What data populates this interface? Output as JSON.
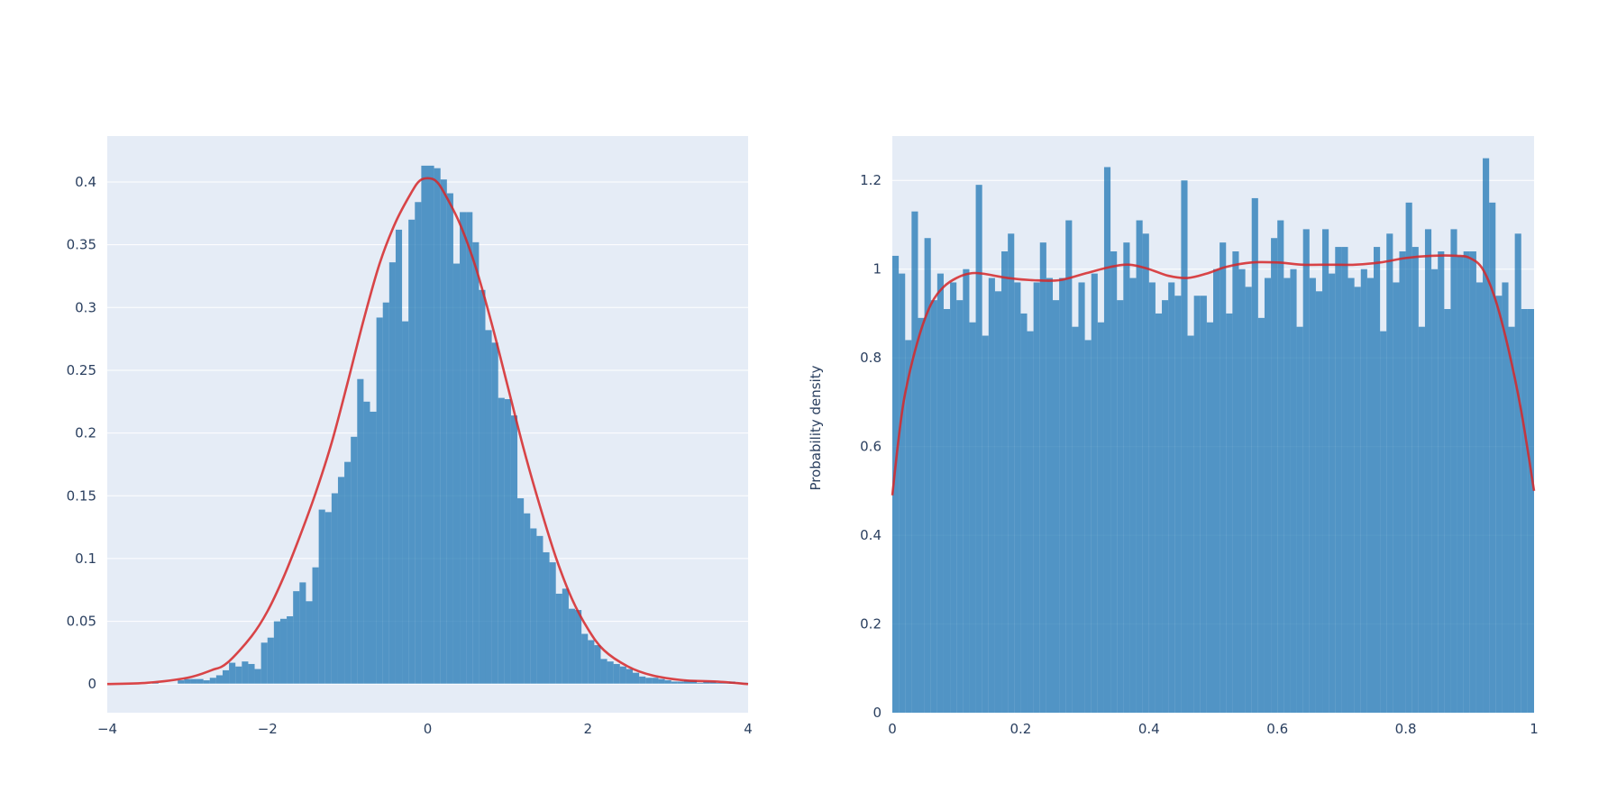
{
  "colors": {
    "bar": "#1f77b4",
    "bar_opacity": 0.75,
    "curve": "#d62728",
    "plot_bg": "#e5ecf6",
    "grid": "#ffffff",
    "text": "#2a3f5f"
  },
  "chart_data": [
    {
      "type": "bar",
      "subtype": "histogram-with-density-curve",
      "xlabel": "",
      "ylabel": "",
      "xlim": [
        -4,
        4
      ],
      "ylim": [
        -0.0228,
        0.4366
      ],
      "x_ticks": [
        -4,
        -2,
        0,
        2,
        4
      ],
      "x_tick_labels": [
        "−4",
        "−2",
        "0",
        "2",
        "4"
      ],
      "y_ticks": [
        0,
        0.05,
        0.1,
        0.15,
        0.2,
        0.25,
        0.3,
        0.35,
        0.4
      ],
      "y_tick_labels": [
        "0",
        "0.05",
        "0.1",
        "0.15",
        "0.2",
        "0.25",
        "0.3",
        "0.35",
        "0.4"
      ],
      "grid": true,
      "bin_start": -4,
      "bin_width": 0.08,
      "values": [
        0,
        0,
        0,
        0,
        0,
        0,
        0,
        0.001,
        0,
        0,
        0,
        0.003,
        0.004,
        0.004,
        0.004,
        0.003,
        0.005,
        0.007,
        0.011,
        0.017,
        0.014,
        0.018,
        0.016,
        0.012,
        0.033,
        0.037,
        0.05,
        0.052,
        0.054,
        0.074,
        0.081,
        0.066,
        0.093,
        0.139,
        0.137,
        0.152,
        0.165,
        0.177,
        0.197,
        0.243,
        0.225,
        0.217,
        0.292,
        0.304,
        0.336,
        0.362,
        0.289,
        0.37,
        0.384,
        0.413,
        0.413,
        0.411,
        0.402,
        0.391,
        0.335,
        0.376,
        0.376,
        0.352,
        0.314,
        0.282,
        0.272,
        0.228,
        0.227,
        0.214,
        0.148,
        0.136,
        0.124,
        0.118,
        0.105,
        0.097,
        0.072,
        0.076,
        0.06,
        0.059,
        0.04,
        0.035,
        0.031,
        0.02,
        0.018,
        0.016,
        0.014,
        0.012,
        0.009,
        0.006,
        0.005,
        0.005,
        0.004,
        0.003,
        0.002,
        0.002,
        0.003,
        0.003,
        0.001,
        0.002,
        0.002,
        0.001,
        0.001,
        0.002,
        0.001,
        0.001
      ],
      "curve": {
        "x": [
          -4.0,
          -3.5,
          -3.0,
          -2.7,
          -2.5,
          -2.2,
          -2.0,
          -1.8,
          -1.6,
          -1.4,
          -1.2,
          -1.0,
          -0.8,
          -0.6,
          -0.4,
          -0.2,
          -0.1,
          0.0,
          0.1,
          0.2,
          0.4,
          0.6,
          0.8,
          1.0,
          1.2,
          1.4,
          1.6,
          1.8,
          2.0,
          2.2,
          2.5,
          2.8,
          3.2,
          3.6,
          4.0
        ],
        "y": [
          0.0,
          0.001,
          0.005,
          0.011,
          0.017,
          0.038,
          0.058,
          0.085,
          0.117,
          0.152,
          0.192,
          0.24,
          0.29,
          0.335,
          0.368,
          0.392,
          0.401,
          0.403,
          0.401,
          0.392,
          0.367,
          0.332,
          0.287,
          0.237,
          0.187,
          0.142,
          0.101,
          0.068,
          0.044,
          0.027,
          0.014,
          0.007,
          0.003,
          0.002,
          0.0
        ]
      }
    },
    {
      "type": "bar",
      "subtype": "histogram-with-density-curve",
      "xlabel": "",
      "ylabel": "Probability density",
      "xlim": [
        0,
        1
      ],
      "ylim": [
        0,
        1.3
      ],
      "x_ticks": [
        0,
        0.2,
        0.4,
        0.6,
        0.8,
        1
      ],
      "x_tick_labels": [
        "0",
        "0.2",
        "0.4",
        "0.6",
        "0.8",
        "1"
      ],
      "y_ticks": [
        0,
        0.2,
        0.4,
        0.6,
        0.8,
        1,
        1.2
      ],
      "y_tick_labels": [
        "0",
        "0.2",
        "0.4",
        "0.6",
        "0.8",
        "1",
        "1.2"
      ],
      "grid": true,
      "bin_start": 0,
      "bin_width": 0.01,
      "values": [
        1.03,
        0.99,
        0.84,
        1.13,
        0.89,
        1.07,
        0.93,
        0.99,
        0.91,
        0.97,
        0.93,
        1.0,
        0.88,
        1.19,
        0.85,
        0.98,
        0.95,
        1.04,
        1.08,
        0.97,
        0.9,
        0.86,
        0.97,
        1.06,
        0.98,
        0.93,
        0.98,
        1.11,
        0.87,
        0.97,
        0.84,
        0.99,
        0.88,
        1.23,
        1.04,
        0.93,
        1.06,
        0.98,
        1.11,
        1.08,
        0.97,
        0.9,
        0.93,
        0.97,
        0.94,
        1.2,
        0.85,
        0.94,
        0.94,
        0.88,
        1.0,
        1.06,
        0.9,
        1.04,
        1.0,
        0.96,
        1.16,
        0.89,
        0.98,
        1.07,
        1.11,
        0.98,
        1.0,
        0.87,
        1.09,
        0.98,
        0.95,
        1.09,
        0.99,
        1.05,
        1.05,
        0.98,
        0.96,
        1.0,
        0.98,
        1.05,
        0.86,
        1.08,
        0.97,
        1.04,
        1.15,
        1.05,
        0.87,
        1.09,
        1.0,
        1.04,
        0.91,
        1.09,
        1.03,
        1.04,
        1.04,
        0.97,
        1.25,
        1.15,
        0.94,
        0.97,
        0.87,
        1.08,
        0.91,
        0.91
      ],
      "curve": {
        "x": [
          0.0,
          0.01,
          0.02,
          0.04,
          0.06,
          0.08,
          0.1,
          0.12,
          0.14,
          0.18,
          0.22,
          0.26,
          0.3,
          0.34,
          0.37,
          0.4,
          0.43,
          0.46,
          0.49,
          0.52,
          0.56,
          0.6,
          0.64,
          0.68,
          0.72,
          0.76,
          0.8,
          0.84,
          0.88,
          0.9,
          0.92,
          0.94,
          0.96,
          0.98,
          1.0
        ],
        "y": [
          0.49,
          0.62,
          0.72,
          0.84,
          0.92,
          0.96,
          0.98,
          0.99,
          0.99,
          0.98,
          0.975,
          0.975,
          0.99,
          1.005,
          1.01,
          1.0,
          0.985,
          0.98,
          0.99,
          1.005,
          1.015,
          1.015,
          1.01,
          1.01,
          1.01,
          1.015,
          1.025,
          1.03,
          1.03,
          1.025,
          1.0,
          0.93,
          0.82,
          0.68,
          0.5
        ]
      }
    }
  ]
}
